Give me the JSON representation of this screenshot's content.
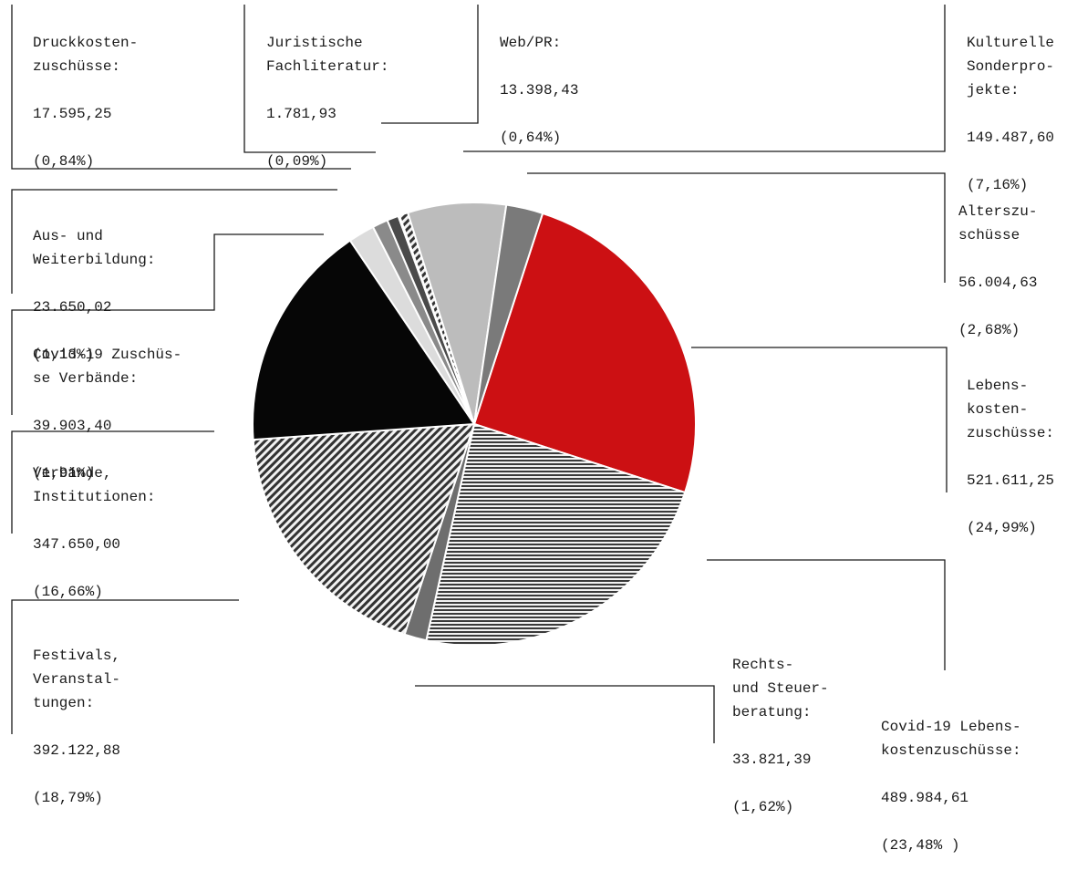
{
  "chart_data": {
    "type": "pie",
    "slices": [
      {
        "key": "lebens",
        "label": "Lebens-\nkosten-\nzuschüsse:",
        "value_text": "521.611,25",
        "percent_text": "(24,99%)",
        "value": 521611.25,
        "percent": 24.99,
        "color": "#cc1013",
        "pattern": "solid"
      },
      {
        "key": "covid_lebens",
        "label": "Covid-19 Lebens-\nkostenzuschüsse:",
        "value_text": "489.984,61",
        "percent_text": "(23,48% )",
        "value": 489984.61,
        "percent": 23.48,
        "color": "#555555",
        "pattern": "horizontal-lines"
      },
      {
        "key": "rechts",
        "label": "Rechts-\nund Steuer-\nberatung:",
        "value_text": "33.821,39",
        "percent_text": "(1,62%)",
        "value": 33821.39,
        "percent": 1.62,
        "color": "#6e6e6e",
        "pattern": "solid"
      },
      {
        "key": "festivals",
        "label": "Festivals,\nVeranstal-\ntungen:",
        "value_text": "392.122,88",
        "percent_text": "(18,79%)",
        "value": 392122.88,
        "percent": 18.79,
        "color": "#555555",
        "pattern": "diagonal-lines"
      },
      {
        "key": "verbaende",
        "label": "Verbände,\nInstitutionen:",
        "value_text": "347.650,00",
        "percent_text": "(16,66%)",
        "value": 347650.0,
        "percent": 16.66,
        "color": "#060606",
        "pattern": "solid"
      },
      {
        "key": "covid_verb",
        "label": "Covid-19 Zuschüs-\nse Verbände:",
        "value_text": "39.903,40",
        "percent_text": "(1,91%)",
        "value": 39903.4,
        "percent": 1.91,
        "color": "#dcdcdc",
        "pattern": "solid"
      },
      {
        "key": "aus",
        "label": "Aus- und\nWeiterbildung:",
        "value_text": "23.650,02",
        "percent_text": "(1,13%)",
        "value": 23650.02,
        "percent": 1.13,
        "color": "#8a8a8a",
        "pattern": "solid"
      },
      {
        "key": "druck",
        "label": "Druckkosten-\nzuschüsse:",
        "value_text": "17.595,25",
        "percent_text": "(0,84%)",
        "value": 17595.25,
        "percent": 0.84,
        "color": "#4a4a4a",
        "pattern": "solid"
      },
      {
        "key": "juris",
        "label": "Juristische\nFachliteratur:",
        "value_text": "1.781,93",
        "percent_text": "(0,09%)",
        "value": 1781.93,
        "percent": 0.09,
        "color": "#2a2a2a",
        "pattern": "solid"
      },
      {
        "key": "web",
        "label": "Web/PR:",
        "value_text": "13.398,43",
        "percent_text": "(0,64%)",
        "value": 13398.43,
        "percent": 0.64,
        "color": "#555555",
        "pattern": "diagonal-lines"
      },
      {
        "key": "kultur",
        "label": "Kulturelle\nSonderpro-\njekte:",
        "value_text": "149.487,60",
        "percent_text": "(7,16%)",
        "value": 149487.6,
        "percent": 7.16,
        "color": "#bcbcbc",
        "pattern": "solid"
      },
      {
        "key": "alter",
        "label": "Alterszu-\nschüsse",
        "value_text": "56.004,63",
        "percent_text": "(2,68%)",
        "value": 56004.63,
        "percent": 2.68,
        "color": "#7a7a7a",
        "pattern": "solid"
      }
    ],
    "title": "",
    "legend": "none",
    "label_placement": "around the pie with leader lines"
  }
}
